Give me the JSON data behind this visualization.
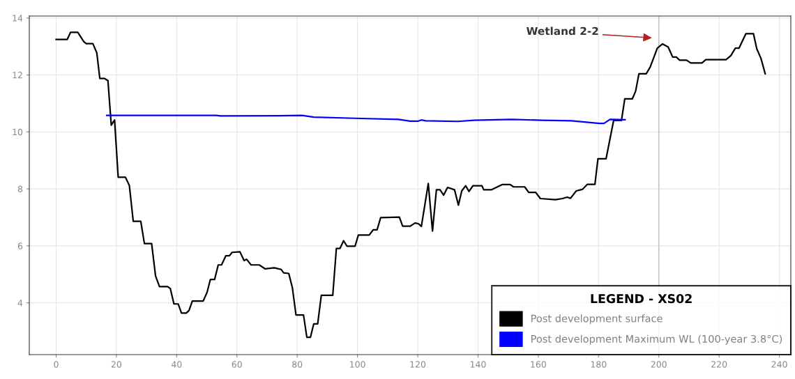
{
  "chart_data": {
    "type": "line",
    "x": [
      0,
      3.7,
      4.8,
      7.2,
      9.2,
      10.0,
      12.2,
      13.5,
      14.5,
      16.0,
      17.2,
      18.3,
      19.4,
      20.6,
      23.0,
      24.3,
      25.6,
      28.1,
      29.3,
      31.7,
      33.0,
      34.3,
      37.0,
      37.9,
      39.1,
      40.5,
      41.6,
      43.2,
      44.1,
      45.2,
      48.8,
      50.1,
      51.2,
      52.6,
      53.8,
      54.9,
      56.3,
      57.5,
      58.4,
      61.0,
      62.4,
      63.2,
      64.7,
      67.4,
      69.4,
      72.4,
      74.7,
      75.5,
      77.2,
      78.4,
      79.6,
      82.1,
      83.2,
      84.4,
      85.5,
      86.8,
      88.0,
      91.8,
      93.0,
      94.2,
      95.4,
      96.5,
      99.2,
      100.3,
      103.9,
      105.2,
      106.5,
      107.7,
      113.9,
      115.0,
      117.5,
      119.1,
      120.2,
      121.2,
      123.5,
      124.9,
      126.2,
      127.4,
      128.6,
      129.9,
      132.2,
      133.5,
      134.6,
      135.9,
      137.0,
      138.3,
      141.3,
      141.9,
      144.5,
      148.0,
      150.7,
      151.8,
      155.5,
      156.8,
      159.1,
      160.7,
      165.7,
      168.0,
      169.6,
      170.7,
      172.6,
      174.6,
      176.3,
      178.8,
      179.8,
      182.5,
      185.0,
      187.6,
      188.7,
      191.2,
      192.3,
      193.4,
      195.8,
      197.1,
      199.5,
      201.2,
      203.1,
      204.6,
      205.8,
      206.9,
      209.2,
      210.6,
      214.3,
      215.6,
      222.3,
      223.9,
      225.4,
      226.6,
      228.9,
      231.4,
      232.5,
      233.9,
      235.3
    ],
    "series": [
      {
        "name": "Post development surface",
        "color": "#000000",
        "values": [
          13.25,
          13.25,
          13.5,
          13.5,
          13.17,
          13.1,
          13.1,
          12.78,
          11.88,
          11.88,
          11.8,
          10.24,
          10.42,
          8.41,
          8.41,
          8.12,
          6.86,
          6.86,
          6.08,
          6.08,
          4.94,
          4.57,
          4.57,
          4.5,
          3.96,
          3.96,
          3.64,
          3.64,
          3.73,
          4.06,
          4.06,
          4.37,
          4.82,
          4.82,
          5.33,
          5.33,
          5.65,
          5.65,
          5.77,
          5.79,
          5.48,
          5.53,
          5.33,
          5.33,
          5.19,
          5.23,
          5.17,
          5.05,
          5.03,
          4.53,
          3.57,
          3.57,
          2.79,
          2.79,
          3.26,
          3.26,
          4.26,
          4.26,
          5.91,
          5.91,
          6.18,
          5.99,
          5.99,
          6.38,
          6.38,
          6.56,
          6.56,
          6.99,
          7.01,
          6.69,
          6.69,
          6.8,
          6.78,
          6.68,
          8.19,
          6.52,
          7.97,
          7.97,
          7.78,
          8.05,
          7.97,
          7.43,
          7.93,
          8.11,
          7.91,
          8.11,
          8.11,
          7.97,
          7.97,
          8.15,
          8.15,
          8.07,
          8.07,
          7.88,
          7.88,
          7.66,
          7.62,
          7.66,
          7.71,
          7.67,
          7.93,
          7.98,
          8.16,
          8.16,
          9.06,
          9.06,
          10.4,
          10.4,
          11.16,
          11.16,
          11.43,
          12.04,
          12.04,
          12.27,
          12.94,
          13.09,
          12.98,
          12.63,
          12.63,
          12.52,
          12.52,
          12.42,
          12.42,
          12.54,
          12.54,
          12.68,
          12.94,
          12.94,
          13.45,
          13.45,
          12.92,
          12.58,
          12.04
        ]
      },
      {
        "name": "Post development Maximum WL (100-year 3.8°C)",
        "color": "#0000ff",
        "x": [
          16.8,
          53.2,
          54.5,
          74.0,
          81.6,
          85.5,
          99.0,
          113.6,
          117.5,
          120.2,
          121.2,
          122.6,
          133.3,
          138.7,
          151.1,
          161.0,
          171.0,
          180.3,
          181.8,
          183.8,
          188.8
        ],
        "values": [
          10.58,
          10.58,
          10.56,
          10.57,
          10.58,
          10.52,
          10.48,
          10.44,
          10.38,
          10.38,
          10.42,
          10.39,
          10.37,
          10.41,
          10.44,
          10.41,
          10.39,
          10.3,
          10.3,
          10.44,
          10.43
        ]
      }
    ],
    "xlim": [
      -8.9,
      243.8
    ],
    "ylim": [
      2.18,
      14.07
    ],
    "xticks": [
      0,
      20,
      40,
      60,
      80,
      100,
      120,
      140,
      160,
      180,
      200,
      220,
      240
    ],
    "yticks": [
      4,
      6,
      8,
      10,
      12,
      14
    ],
    "grid": true,
    "legend": "bottom right",
    "legend_title": "LEGEND - XS02",
    "ref_lines": [
      {
        "axis": "x",
        "value": 200,
        "color": "#c0c0c0"
      }
    ],
    "annotations": [
      "Wetland 2-2"
    ]
  }
}
